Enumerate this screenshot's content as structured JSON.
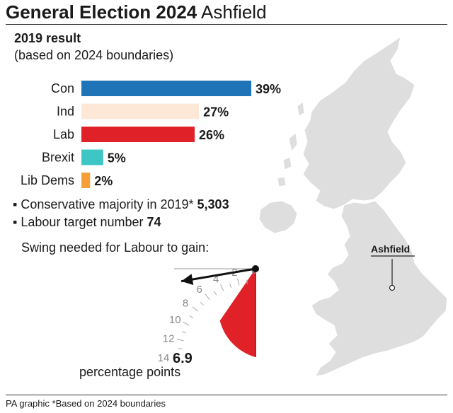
{
  "header": {
    "title_bold": "General Election 2024",
    "title_rest": "Ashfield"
  },
  "result": {
    "heading": "2019 result",
    "note": "(based on 2024 boundaries)"
  },
  "chart_data": {
    "type": "bar",
    "orientation": "horizontal",
    "categories": [
      "Con",
      "Ind",
      "Lab",
      "Brexit",
      "Lib Dems"
    ],
    "values": [
      39,
      27,
      26,
      5,
      2
    ],
    "value_labels": [
      "39%",
      "27%",
      "26%",
      "5%",
      "2%"
    ],
    "colors": [
      "#1f73b7",
      "#fde8d8",
      "#e02128",
      "#3ec6c6",
      "#f5a036"
    ],
    "unit": "%"
  },
  "facts": {
    "majority_label": "Conservative majority in 2019*",
    "majority_value": "5,303",
    "target_label": "Labour target number",
    "target_value": "74"
  },
  "swing": {
    "title": "Swing needed for Labour to gain:",
    "value": 6.9,
    "value_label": "6.9",
    "unit_label": "percentage points",
    "scale_max": 14,
    "ticks": [
      "0",
      "2",
      "4",
      "6",
      "8",
      "10",
      "12",
      "14"
    ],
    "fill_color": "#e02128"
  },
  "map": {
    "label": "Ashfield",
    "land_color": "#dedede"
  },
  "footer": "PA graphic *Based on 2024 boundaries"
}
